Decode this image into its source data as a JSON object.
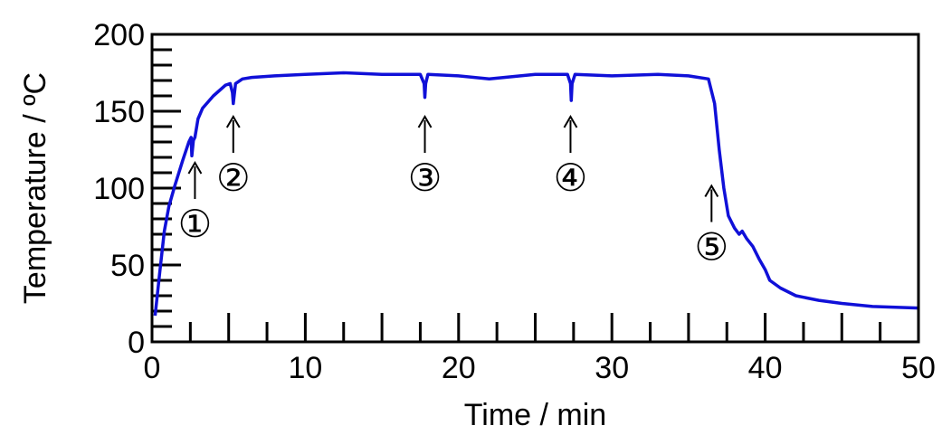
{
  "chart_data": {
    "type": "line",
    "xlabel": "Time / min",
    "ylabel": "Temperature / ºC",
    "xlim": [
      0,
      50
    ],
    "ylim": [
      0,
      200
    ],
    "x_ticks": [
      "0",
      "10",
      "20",
      "30",
      "40",
      "50"
    ],
    "y_ticks": [
      "0",
      "50",
      "100",
      "150",
      "200"
    ],
    "grid": false,
    "legend": "none",
    "line_color": "#1010d8",
    "series": [
      {
        "x": [
          0.2,
          0.5,
          0.8,
          1.1,
          1.5,
          2.0,
          2.4,
          2.55,
          2.6,
          2.7,
          2.8,
          3.0,
          3.3,
          4.0,
          4.8,
          5.1,
          5.25,
          5.3,
          5.45,
          5.9,
          6.5,
          8,
          10,
          12.5,
          15,
          17.5,
          17.75,
          17.8,
          17.85,
          18.0,
          20,
          22,
          25,
          27.1,
          27.3,
          27.35,
          27.4,
          27.6,
          30,
          33,
          35,
          36.3,
          36.7,
          37.0,
          37.3,
          37.6,
          38.0,
          38.3,
          38.5,
          38.8,
          39.2,
          39.6,
          40.0,
          40.3,
          41.0,
          42.0,
          43.5,
          45.0,
          47.0,
          50.0
        ],
        "y": [
          17,
          45,
          72,
          88,
          102,
          118,
          130,
          133,
          121,
          131,
          133,
          145,
          152,
          160,
          167,
          168,
          162,
          155,
          168,
          171,
          172,
          173,
          174,
          175,
          174,
          174,
          168,
          159,
          168,
          174,
          173,
          171,
          174,
          174,
          168,
          157,
          168,
          174,
          173,
          174,
          173,
          171,
          155,
          125,
          100,
          82,
          74,
          70,
          72,
          67,
          62,
          54,
          47,
          40,
          35,
          30,
          27,
          25,
          23,
          22
        ]
      }
    ],
    "annotations": [
      {
        "label": "①",
        "x": 2.8,
        "y": 120,
        "arrow": true
      },
      {
        "label": "②",
        "x": 5.3,
        "y": 150,
        "arrow": true
      },
      {
        "label": "③",
        "x": 17.8,
        "y": 150,
        "arrow": true
      },
      {
        "label": "④",
        "x": 27.3,
        "y": 150,
        "arrow": true
      },
      {
        "label": "⑤",
        "x": 36.5,
        "y": 105,
        "arrow": true
      }
    ]
  }
}
